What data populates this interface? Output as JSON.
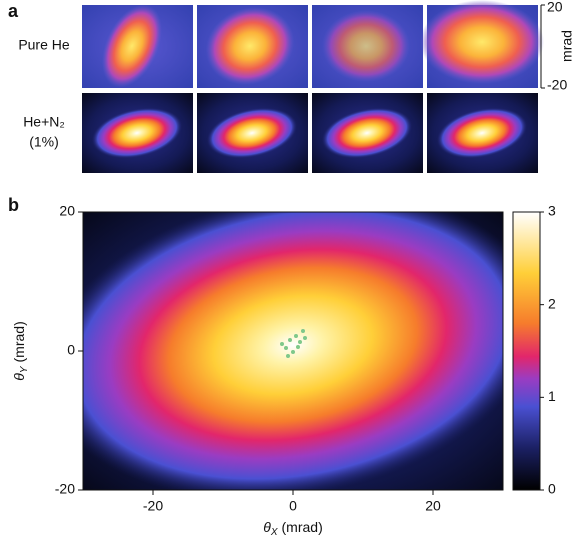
{
  "chart_data": [
    {
      "type": "image-grid",
      "panel_label": "a",
      "row_labels": [
        [
          "Pure He"
        ],
        [
          "He+N₂",
          "(1%)"
        ]
      ],
      "ylabel": "mrad",
      "ylim": [
        -20,
        20
      ],
      "yticks": [
        -20,
        20
      ]
    },
    {
      "type": "heatmap",
      "panel_label": "b",
      "xlabel": {
        "symbol": "θ",
        "subscript": "X",
        "unit": "(mrad)"
      },
      "ylabel": {
        "symbol": "θ",
        "subscript": "Y",
        "unit": "(mrad)"
      },
      "xlim": [
        -30,
        30
      ],
      "xticks": [
        -20,
        0,
        20
      ],
      "ylim": [
        -20,
        20
      ],
      "yticks": [
        -20,
        0,
        20
      ],
      "colorbar": {
        "lim": [
          0,
          3
        ],
        "ticks": [
          0,
          1,
          2,
          3
        ]
      }
    }
  ]
}
